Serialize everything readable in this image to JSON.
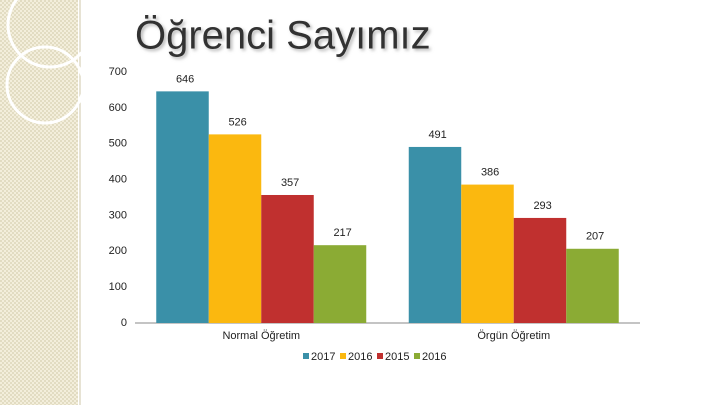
{
  "chart_data": {
    "type": "bar",
    "title": "Öğrenci Sayımız",
    "categories": [
      "Normal Öğretim",
      "Örgün Öğretim"
    ],
    "series": [
      {
        "name": "2017",
        "color": "#3a90a8",
        "values": [
          646,
          491
        ]
      },
      {
        "name": "2016",
        "color": "#fbb80f",
        "values": [
          526,
          386
        ]
      },
      {
        "name": "2015",
        "color": "#c0302f",
        "values": [
          357,
          293
        ]
      },
      {
        "name": "2016",
        "color": "#8bab34",
        "values": [
          217,
          207
        ]
      }
    ],
    "ylim": [
      0,
      700
    ],
    "yticks": [
      0,
      100,
      200,
      300,
      400,
      500,
      600,
      700
    ],
    "grid": false,
    "legend": "bottom"
  }
}
